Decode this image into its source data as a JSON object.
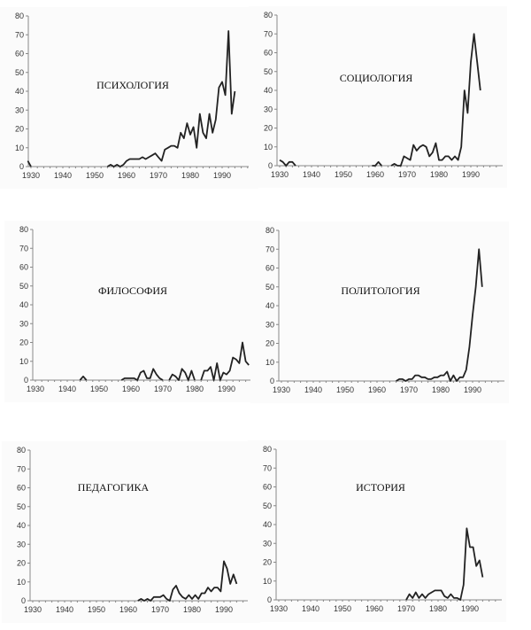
{
  "chart_data": [
    {
      "type": "line",
      "title": "ПСИХОЛОГИЯ",
      "xlim": [
        1930,
        2000
      ],
      "ylim": [
        0,
        80
      ],
      "xticks": [
        1930,
        1940,
        1950,
        1960,
        1970,
        1980,
        1990
      ],
      "yticks": [
        0,
        10,
        20,
        30,
        40,
        50,
        60,
        70,
        80
      ],
      "segments": [
        [
          [
            1929,
            3
          ],
          [
            1930,
            0
          ]
        ],
        [
          [
            1954,
            0
          ],
          [
            1955,
            1
          ],
          [
            1956,
            0
          ],
          [
            1957,
            1
          ],
          [
            1958,
            0
          ],
          [
            1959,
            1
          ],
          [
            1960,
            3
          ],
          [
            1961,
            4
          ],
          [
            1962,
            4
          ],
          [
            1963,
            4
          ],
          [
            1964,
            4
          ],
          [
            1965,
            5
          ],
          [
            1966,
            4
          ],
          [
            1967,
            5
          ],
          [
            1968,
            6
          ],
          [
            1969,
            7
          ],
          [
            1970,
            5
          ],
          [
            1971,
            3
          ],
          [
            1972,
            9
          ],
          [
            1973,
            10
          ],
          [
            1974,
            11
          ],
          [
            1975,
            11
          ],
          [
            1976,
            10
          ],
          [
            1977,
            18
          ],
          [
            1978,
            15
          ],
          [
            1979,
            23
          ],
          [
            1980,
            17
          ],
          [
            1981,
            21
          ],
          [
            1982,
            10
          ],
          [
            1983,
            28
          ],
          [
            1984,
            18
          ],
          [
            1985,
            15
          ],
          [
            1986,
            28
          ],
          [
            1987,
            18
          ],
          [
            1988,
            25
          ],
          [
            1989,
            42
          ],
          [
            1990,
            45
          ],
          [
            1991,
            38
          ],
          [
            1992,
            72
          ],
          [
            1993,
            28
          ],
          [
            1994,
            40
          ]
        ]
      ]
    },
    {
      "type": "line",
      "title": "СОЦИОЛОГИЯ",
      "xlim": [
        1930,
        2000
      ],
      "ylim": [
        0,
        80
      ],
      "xticks": [
        1930,
        1940,
        1950,
        1960,
        1970,
        1980,
        1990
      ],
      "yticks": [
        0,
        10,
        20,
        30,
        40,
        50,
        60,
        70,
        80
      ],
      "segments": [
        [
          [
            1930,
            3
          ],
          [
            1931,
            2
          ],
          [
            1932,
            0
          ],
          [
            1933,
            2
          ],
          [
            1934,
            2
          ],
          [
            1935,
            0
          ]
        ],
        [
          [
            1959,
            0
          ],
          [
            1960,
            0
          ],
          [
            1961,
            2
          ],
          [
            1962,
            0
          ]
        ],
        [
          [
            1965,
            0
          ],
          [
            1966,
            1
          ],
          [
            1967,
            0
          ],
          [
            1968,
            0
          ],
          [
            1969,
            5
          ],
          [
            1970,
            4
          ],
          [
            1971,
            3
          ],
          [
            1972,
            11
          ],
          [
            1973,
            8
          ],
          [
            1974,
            10
          ],
          [
            1975,
            11
          ],
          [
            1976,
            10
          ],
          [
            1977,
            5
          ],
          [
            1978,
            7
          ],
          [
            1979,
            12
          ],
          [
            1980,
            3
          ],
          [
            1981,
            3
          ],
          [
            1982,
            5
          ],
          [
            1983,
            5
          ],
          [
            1984,
            3
          ],
          [
            1985,
            5
          ],
          [
            1986,
            3
          ],
          [
            1987,
            10
          ],
          [
            1988,
            40
          ],
          [
            1989,
            28
          ],
          [
            1990,
            55
          ],
          [
            1991,
            70
          ],
          [
            1992,
            55
          ],
          [
            1993,
            40
          ]
        ]
      ]
    },
    {
      "type": "line",
      "title": "ФИЛОСОФИЯ",
      "xlim": [
        1930,
        2000
      ],
      "ylim": [
        0,
        80
      ],
      "xticks": [
        1930,
        1940,
        1950,
        1960,
        1970,
        1980,
        1990
      ],
      "yticks": [
        0,
        10,
        20,
        30,
        40,
        50,
        60,
        70,
        80
      ],
      "segments": [
        [
          [
            1944,
            0
          ],
          [
            1945,
            2
          ],
          [
            1946,
            0
          ]
        ],
        [
          [
            1957,
            0
          ],
          [
            1958,
            1
          ],
          [
            1959,
            1
          ],
          [
            1960,
            1
          ],
          [
            1961,
            1
          ],
          [
            1962,
            0
          ],
          [
            1963,
            4
          ],
          [
            1964,
            5
          ],
          [
            1965,
            1
          ],
          [
            1966,
            1
          ],
          [
            1967,
            6
          ],
          [
            1968,
            3
          ],
          [
            1969,
            1
          ],
          [
            1970,
            0
          ]
        ],
        [
          [
            1972,
            0
          ],
          [
            1973,
            3
          ],
          [
            1974,
            2
          ],
          [
            1975,
            0
          ],
          [
            1976,
            6
          ],
          [
            1977,
            4
          ],
          [
            1978,
            0
          ],
          [
            1979,
            5
          ],
          [
            1980,
            0
          ]
        ],
        [
          [
            1982,
            0
          ],
          [
            1983,
            5
          ],
          [
            1984,
            5
          ],
          [
            1985,
            7
          ],
          [
            1986,
            0
          ],
          [
            1987,
            9
          ],
          [
            1988,
            0
          ],
          [
            1989,
            4
          ],
          [
            1990,
            3
          ],
          [
            1991,
            5
          ],
          [
            1992,
            12
          ],
          [
            1993,
            11
          ],
          [
            1994,
            9
          ],
          [
            1995,
            20
          ],
          [
            1996,
            10
          ],
          [
            1997,
            8
          ]
        ]
      ]
    },
    {
      "type": "line",
      "title": "ПОЛИТОЛОГИЯ",
      "xlim": [
        1930,
        2000
      ],
      "ylim": [
        0,
        80
      ],
      "xticks": [
        1930,
        1940,
        1950,
        1960,
        1970,
        1980,
        1990
      ],
      "yticks": [
        0,
        10,
        20,
        30,
        40,
        50,
        60,
        70,
        80
      ],
      "segments": [
        [
          [
            1966,
            0
          ],
          [
            1967,
            1
          ],
          [
            1968,
            1
          ],
          [
            1969,
            0
          ],
          [
            1970,
            1
          ],
          [
            1971,
            1
          ],
          [
            1972,
            3
          ],
          [
            1973,
            3
          ],
          [
            1974,
            2
          ],
          [
            1975,
            2
          ],
          [
            1976,
            1
          ],
          [
            1977,
            1
          ],
          [
            1978,
            2
          ],
          [
            1979,
            2
          ],
          [
            1980,
            3
          ],
          [
            1981,
            3
          ],
          [
            1982,
            5
          ],
          [
            1983,
            0
          ],
          [
            1984,
            3
          ],
          [
            1985,
            0
          ],
          [
            1986,
            2
          ],
          [
            1987,
            2
          ],
          [
            1988,
            6
          ],
          [
            1989,
            18
          ],
          [
            1990,
            35
          ],
          [
            1991,
            50
          ],
          [
            1992,
            70
          ],
          [
            1993,
            50
          ]
        ]
      ]
    },
    {
      "type": "line",
      "title": "ПЕДАГОГИКА",
      "xlim": [
        1930,
        2000
      ],
      "ylim": [
        0,
        80
      ],
      "xticks": [
        1930,
        1940,
        1950,
        1960,
        1970,
        1980,
        1990
      ],
      "yticks": [
        0,
        10,
        20,
        30,
        40,
        50,
        60,
        70,
        80
      ],
      "segments": [
        [
          [
            1963,
            0
          ],
          [
            1964,
            1
          ],
          [
            1965,
            0
          ],
          [
            1966,
            1
          ],
          [
            1967,
            0
          ],
          [
            1968,
            2
          ],
          [
            1969,
            2
          ],
          [
            1970,
            2
          ],
          [
            1971,
            3
          ],
          [
            1972,
            1
          ],
          [
            1973,
            0
          ],
          [
            1974,
            6
          ],
          [
            1975,
            8
          ],
          [
            1976,
            4
          ],
          [
            1977,
            2
          ],
          [
            1978,
            1
          ],
          [
            1979,
            3
          ],
          [
            1980,
            1
          ],
          [
            1981,
            3
          ],
          [
            1982,
            1
          ],
          [
            1983,
            4
          ],
          [
            1984,
            4
          ],
          [
            1985,
            7
          ],
          [
            1986,
            5
          ],
          [
            1987,
            7
          ],
          [
            1988,
            7
          ],
          [
            1989,
            5
          ],
          [
            1990,
            21
          ],
          [
            1991,
            17
          ],
          [
            1992,
            9
          ],
          [
            1993,
            14
          ],
          [
            1994,
            9
          ]
        ]
      ]
    },
    {
      "type": "line",
      "title": "ИСТОРИЯ",
      "xlim": [
        1930,
        2000
      ],
      "ylim": [
        0,
        80
      ],
      "xticks": [
        1930,
        1940,
        1950,
        1960,
        1970,
        1980,
        1990
      ],
      "yticks": [
        0,
        10,
        20,
        30,
        40,
        50,
        60,
        70,
        80
      ],
      "segments": [
        [
          [
            1970,
            0
          ],
          [
            1971,
            3
          ],
          [
            1972,
            1
          ],
          [
            1973,
            4
          ],
          [
            1974,
            1
          ],
          [
            1975,
            3
          ],
          [
            1976,
            1
          ],
          [
            1977,
            3
          ],
          [
            1978,
            4
          ],
          [
            1979,
            5
          ],
          [
            1980,
            5
          ],
          [
            1981,
            5
          ],
          [
            1982,
            2
          ],
          [
            1983,
            1
          ],
          [
            1984,
            3
          ],
          [
            1985,
            1
          ],
          [
            1986,
            1
          ],
          [
            1987,
            0
          ],
          [
            1988,
            8
          ],
          [
            1989,
            38
          ],
          [
            1990,
            28
          ],
          [
            1991,
            28
          ],
          [
            1992,
            18
          ],
          [
            1993,
            21
          ],
          [
            1994,
            12
          ]
        ]
      ]
    }
  ]
}
